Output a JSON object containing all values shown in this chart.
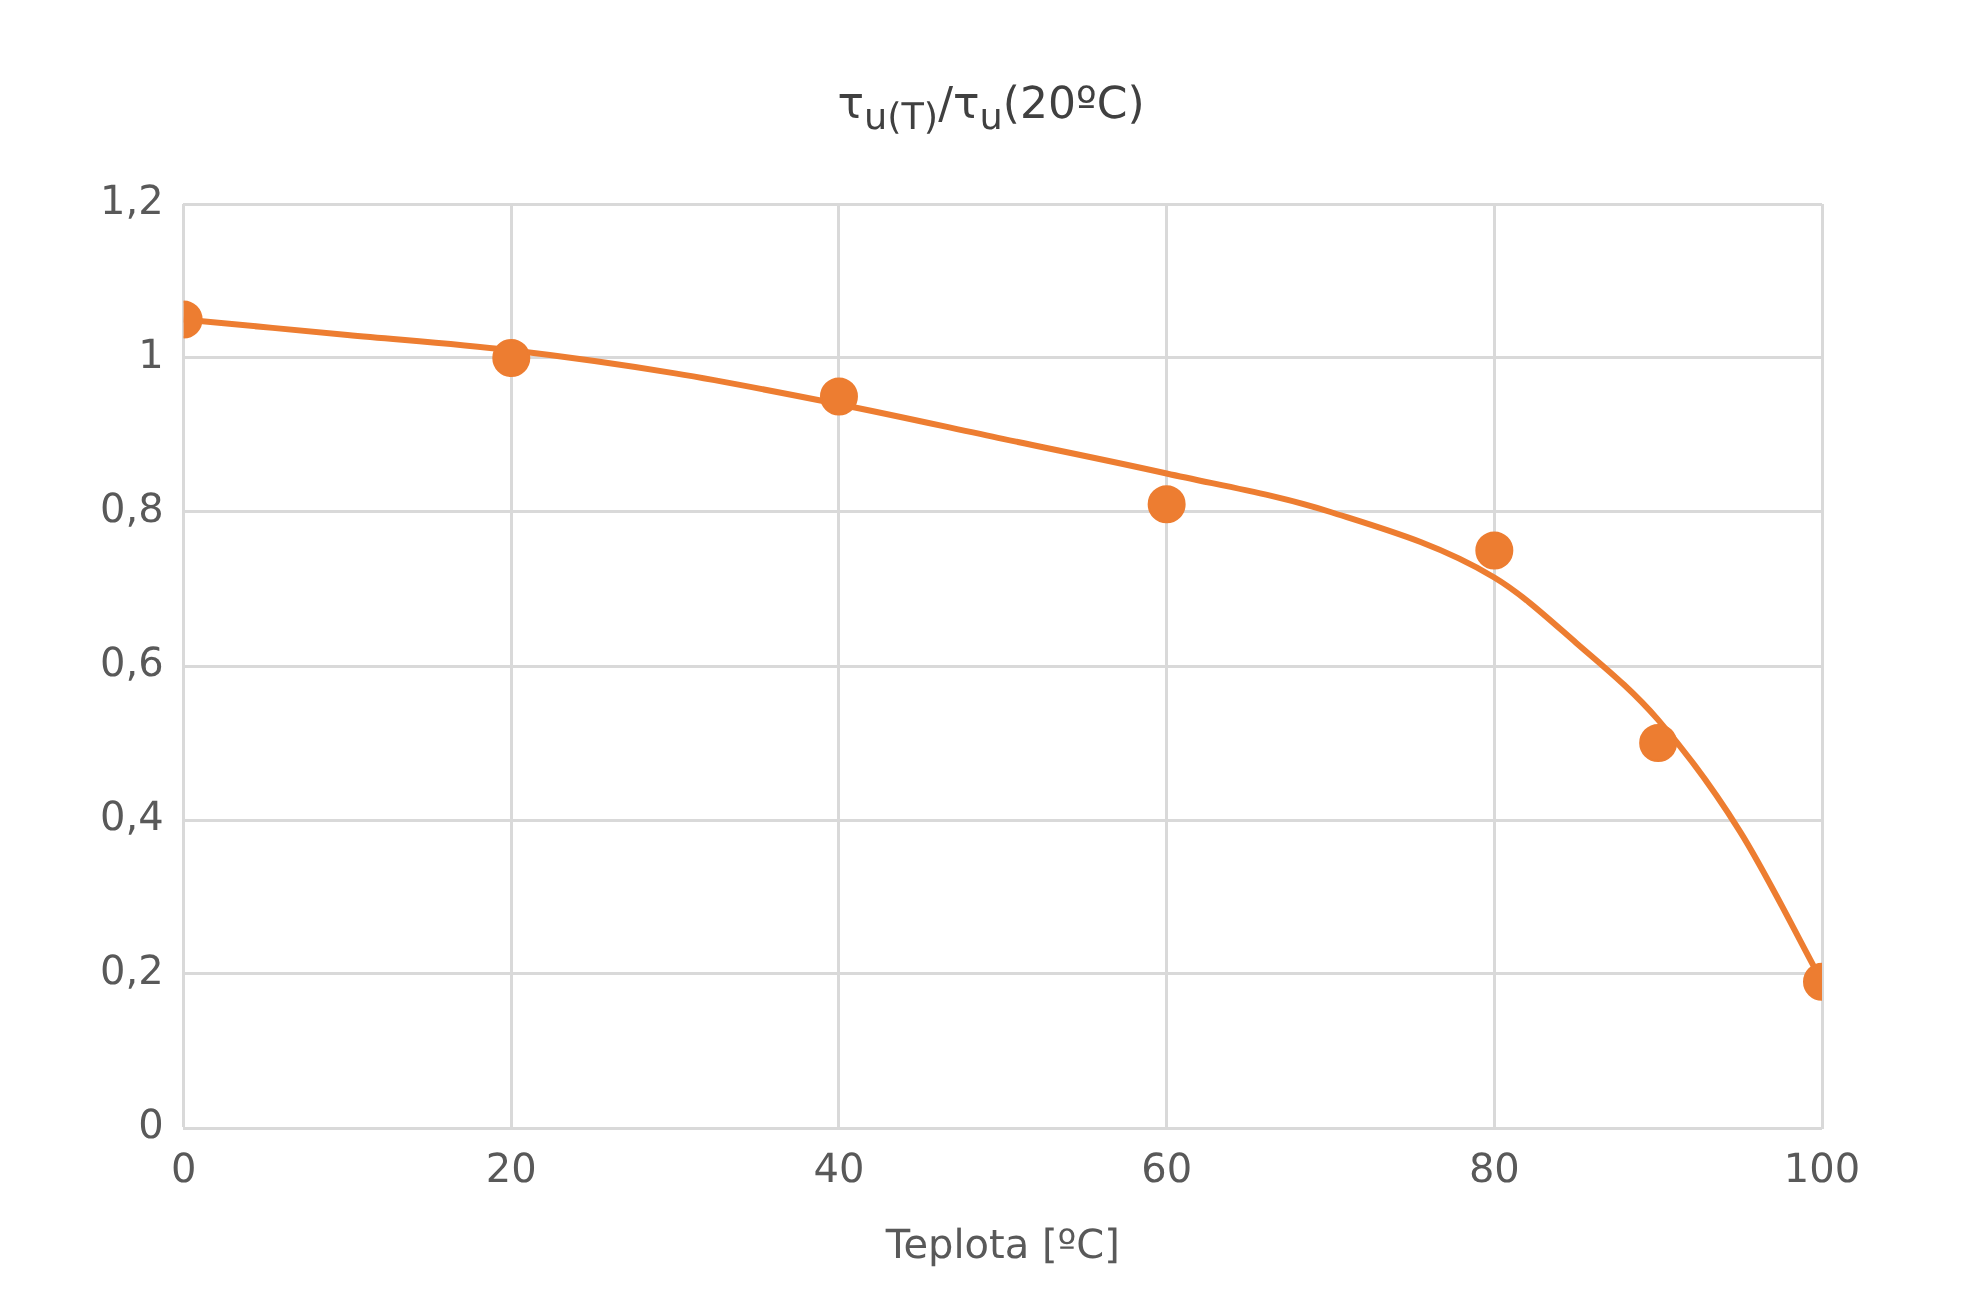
{
  "chart_data": {
    "type": "scatter",
    "title": "τ$_{u(T)}$/τ$_{u}$(20ºC)",
    "xlabel": "Teplota [ºC]",
    "x": [
      0,
      20,
      40,
      60,
      80,
      90,
      100
    ],
    "series": [
      {
        "type": "scatter",
        "marker": "circle",
        "color": "#ed7d31",
        "values": [
          1.05,
          1.0,
          0.95,
          0.81,
          0.75,
          0.5,
          0.19
        ]
      },
      {
        "type": "line",
        "marker": "none",
        "color": "#ed7d31",
        "x": [
          0,
          10,
          20,
          30,
          40,
          50,
          60,
          70,
          80,
          85,
          90,
          95,
          100
        ],
        "values": [
          1.05,
          1.03,
          1.01,
          0.98,
          0.94,
          0.895,
          0.85,
          0.8,
          0.715,
          0.63,
          0.53,
          0.385,
          0.19
        ]
      }
    ],
    "grid": true,
    "legend": false,
    "xlim": [
      0,
      100
    ],
    "xticks": [
      0,
      20,
      40,
      60,
      80,
      100
    ],
    "ylim": [
      0,
      1.2
    ],
    "yticks": [
      0,
      {
        "value": 0.2,
        "label": "0,2"
      },
      {
        "value": 0.4,
        "label": "0,4"
      },
      {
        "value": 0.6,
        "label": "0,6"
      },
      {
        "value": 0.8,
        "label": "0,8"
      },
      1,
      {
        "value": 1.2,
        "label": "1,2"
      }
    ]
  }
}
